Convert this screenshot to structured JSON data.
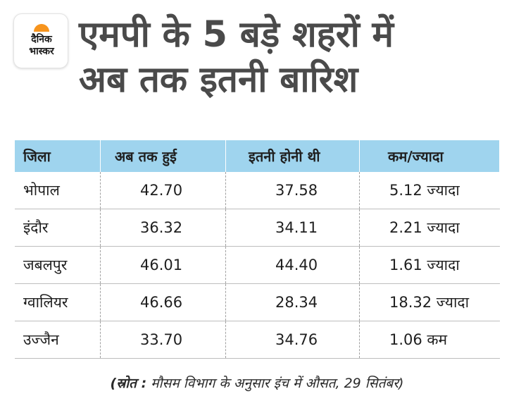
{
  "logo": {
    "line1": "दैनिक",
    "line2": "भास्कर",
    "sun_color": "#f7941d"
  },
  "title_line1": "एमपी के 5 बड़े शहरों में",
  "title_line2": "अब तक इतनी बारिश",
  "colors": {
    "header_bg": "#9fd4ee",
    "title": "#4a4a4a"
  },
  "chart_data": {
    "type": "table",
    "columns": [
      "जिला",
      "अब तक हुई",
      "इतनी होनी थी",
      "कम/ज्यादा"
    ],
    "rows": [
      [
        "भोपाल",
        "42.70",
        "37.58",
        "5.12 ज्यादा"
      ],
      [
        "इंदौर",
        "36.32",
        "34.11",
        "2.21 ज्यादा"
      ],
      [
        "जबलपुर",
        "46.01",
        "44.40",
        "1.61 ज्यादा"
      ],
      [
        "ग्वालियर",
        "46.66",
        "28.34",
        "18.32 ज्यादा"
      ],
      [
        "उज्जैन",
        "33.70",
        "34.76",
        "1.06 कम"
      ]
    ]
  },
  "source": {
    "label": "(स्रोत :",
    "text": " मौसम विभाग के अनुसार इंच में औसत, 29 सितंबर)"
  }
}
